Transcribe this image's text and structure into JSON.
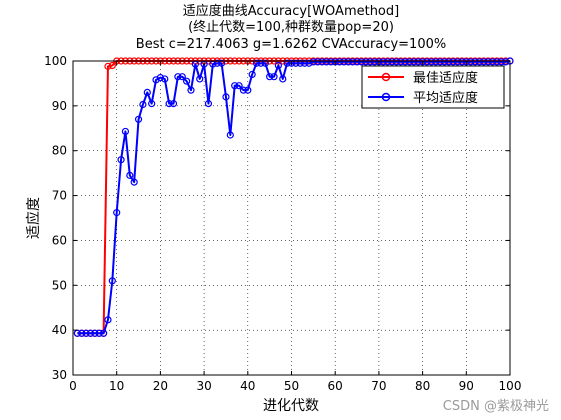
{
  "chart_data": {
    "type": "line",
    "title_lines": [
      "适应度曲线Accuracy[WOAmethod]",
      "(终止代数=100,种群数量pop=20)",
      "Best c=217.4063 g=1.6262 CVAccuracy=100%"
    ],
    "xlabel": "进化代数",
    "ylabel": "适应度",
    "xlim": [
      0,
      100
    ],
    "ylim": [
      30,
      100
    ],
    "xticks": [
      0,
      10,
      20,
      30,
      40,
      50,
      60,
      70,
      80,
      90,
      100
    ],
    "yticks": [
      30,
      40,
      50,
      60,
      70,
      80,
      90,
      100
    ],
    "grid": true,
    "legend_position": "top-right",
    "series": [
      {
        "name": "最佳适应度",
        "color": "#ff0000",
        "marker": "circle",
        "x": [
          1,
          2,
          3,
          4,
          5,
          6,
          7,
          8,
          9,
          10,
          11,
          12,
          13,
          14,
          15,
          16,
          17,
          18,
          19,
          20,
          21,
          22,
          23,
          24,
          25,
          26,
          27,
          28,
          29,
          30,
          31,
          32,
          33,
          34,
          35,
          36,
          37,
          38,
          39,
          40,
          41,
          42,
          43,
          44,
          45,
          46,
          47,
          48,
          49,
          50,
          51,
          52,
          53,
          54,
          55,
          56,
          57,
          58,
          59,
          60,
          61,
          62,
          63,
          64,
          65,
          66,
          67,
          68,
          69,
          70,
          71,
          72,
          73,
          74,
          75,
          76,
          77,
          78,
          79,
          80,
          81,
          82,
          83,
          84,
          85,
          86,
          87,
          88,
          89,
          90,
          91,
          92,
          93,
          94,
          95,
          96,
          97,
          98,
          99,
          100
        ],
        "values": [
          39.3,
          39.3,
          39.3,
          39.3,
          39.3,
          39.3,
          39.3,
          98.8,
          99.0,
          100,
          100,
          100,
          100,
          100,
          100,
          100,
          100,
          100,
          100,
          100,
          100,
          100,
          100,
          100,
          100,
          100,
          100,
          100,
          100,
          100,
          100,
          100,
          100,
          100,
          100,
          100,
          100,
          100,
          100,
          100,
          100,
          100,
          100,
          100,
          100,
          100,
          100,
          100,
          100,
          100,
          100,
          100,
          100,
          100,
          100,
          100,
          100,
          100,
          100,
          100,
          100,
          100,
          100,
          100,
          100,
          100,
          100,
          100,
          100,
          100,
          100,
          100,
          100,
          100,
          100,
          100,
          100,
          100,
          100,
          100,
          100,
          100,
          100,
          100,
          100,
          100,
          100,
          100,
          100,
          100,
          100,
          100,
          100,
          100,
          100,
          100,
          100,
          100,
          100,
          100
        ]
      },
      {
        "name": "平均适应度",
        "color": "#0000ff",
        "marker": "circle",
        "x": [
          1,
          2,
          3,
          4,
          5,
          6,
          7,
          8,
          9,
          10,
          11,
          12,
          13,
          14,
          15,
          16,
          17,
          18,
          19,
          20,
          21,
          22,
          23,
          24,
          25,
          26,
          27,
          28,
          29,
          30,
          31,
          32,
          33,
          34,
          35,
          36,
          37,
          38,
          39,
          40,
          41,
          42,
          43,
          44,
          45,
          46,
          47,
          48,
          49,
          50,
          51,
          52,
          53,
          54,
          55,
          56,
          57,
          58,
          59,
          60,
          61,
          62,
          63,
          64,
          65,
          66,
          67,
          68,
          69,
          70,
          71,
          72,
          73,
          74,
          75,
          76,
          77,
          78,
          79,
          80,
          81,
          82,
          83,
          84,
          85,
          86,
          87,
          88,
          89,
          90,
          91,
          92,
          93,
          94,
          95,
          96,
          97,
          98,
          99,
          100
        ],
        "values": [
          39.3,
          39.3,
          39.3,
          39.3,
          39.3,
          39.3,
          39.3,
          42.3,
          51.0,
          66.2,
          78.0,
          84.3,
          74.5,
          73.0,
          87.0,
          90.3,
          93.0,
          90.5,
          95.8,
          96.3,
          96.0,
          90.5,
          90.5,
          96.5,
          96.5,
          95.5,
          93.5,
          99.3,
          96.0,
          99.3,
          90.5,
          99.3,
          99.5,
          99.5,
          92.0,
          83.5,
          94.5,
          94.5,
          93.5,
          93.5,
          97.0,
          99.5,
          99.5,
          99.5,
          96.5,
          96.5,
          99.0,
          96.0,
          99.5,
          99.5,
          99.5,
          99.5,
          99.5,
          99.5,
          99.8,
          99.8,
          99.8,
          99.8,
          99.8,
          99.8,
          99.8,
          99.8,
          99.8,
          99.8,
          99.8,
          99.8,
          99.8,
          99.8,
          99.8,
          99.8,
          99.8,
          99.8,
          99.8,
          99.8,
          99.8,
          99.8,
          99.8,
          99.8,
          99.8,
          99.8,
          99.8,
          99.8,
          99.8,
          99.8,
          99.8,
          99.8,
          99.8,
          99.8,
          99.8,
          99.8,
          99.8,
          99.8,
          99.8,
          99.8,
          99.8,
          99.8,
          99.8,
          99.8,
          99.8,
          100
        ]
      }
    ]
  },
  "watermark": "CSDN @紫极神光"
}
